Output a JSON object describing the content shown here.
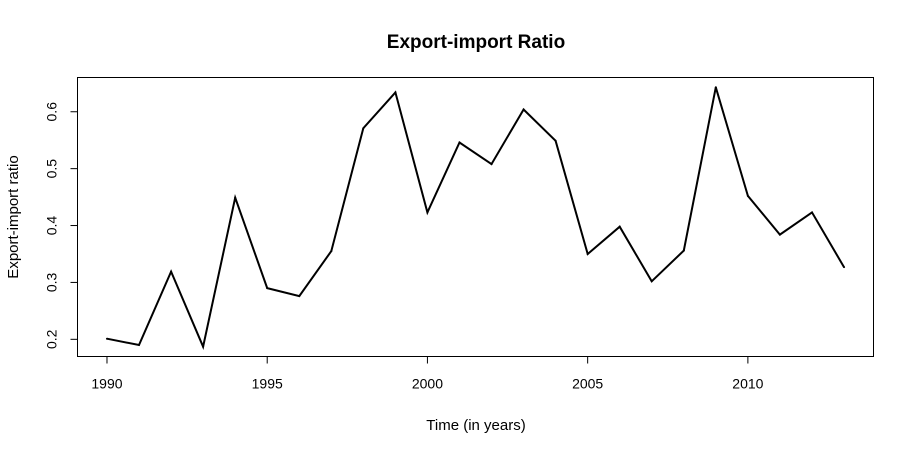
{
  "chart_data": {
    "type": "line",
    "title": "Export-import Ratio",
    "xlabel": "Time (in years)",
    "ylabel": "Export-import ratio",
    "x": [
      1990,
      1991,
      1992,
      1993,
      1994,
      1995,
      1996,
      1997,
      1998,
      1999,
      2000,
      2001,
      2002,
      2003,
      2004,
      2005,
      2006,
      2007,
      2008,
      2009,
      2010,
      2011,
      2012,
      2013
    ],
    "series": [
      {
        "values": [
          0.201,
          0.19,
          0.319,
          0.187,
          0.449,
          0.29,
          0.276,
          0.355,
          0.571,
          0.634,
          0.423,
          0.546,
          0.508,
          0.604,
          0.549,
          0.35,
          0.398,
          0.302,
          0.356,
          0.643,
          0.452,
          0.384,
          0.423,
          0.327
        ]
      }
    ],
    "xticks": [
      1990,
      1995,
      2000,
      2005,
      2010
    ],
    "yticks": [
      0.2,
      0.3,
      0.4,
      0.5,
      0.6
    ],
    "xlim": [
      1989.08,
      2013.92
    ],
    "ylim": [
      0.1698,
      0.6602
    ],
    "grid": false,
    "colors": {
      "line": "#000000",
      "frame": "#000000",
      "background": "#ffffff"
    }
  }
}
